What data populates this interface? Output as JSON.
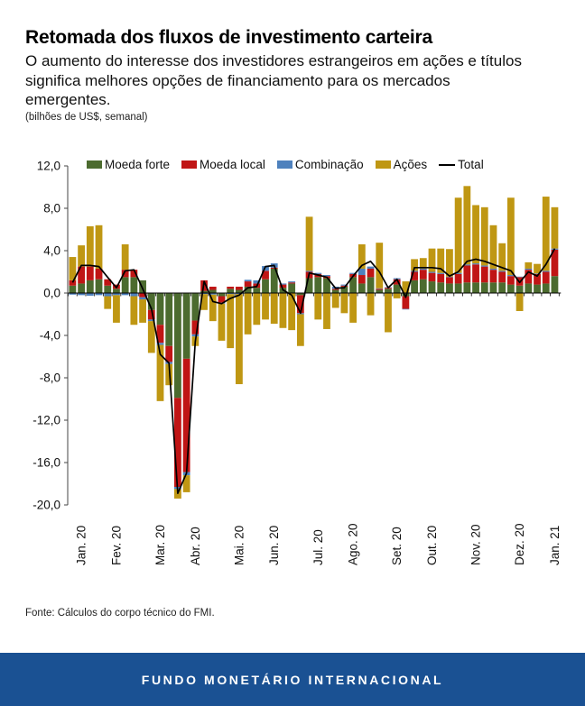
{
  "header": {
    "title": "Retomada dos fluxos de investimento carteira",
    "subtitle": "O aumento do interesse dos investidores estrangeiros em ações e títulos significa melhores opções de financiamento para os mercados emergentes.",
    "note": "(bilhões de US$, semanal)"
  },
  "legend": {
    "items": [
      {
        "label": "Moeda forte",
        "color": "#4c6b2f",
        "type": "box"
      },
      {
        "label": "Moeda local",
        "color": "#c01515",
        "type": "box"
      },
      {
        "label": "Combinação",
        "color": "#4e81bd",
        "type": "box"
      },
      {
        "label": "Ações",
        "color": "#bf9713",
        "type": "box"
      },
      {
        "label": "Total",
        "color": "#000000",
        "type": "line"
      }
    ]
  },
  "footer": {
    "source": "Fonte: Cálculos do corpo técnico do FMI."
  },
  "banner": {
    "title": "FUNDO MONETÁRIO INTERNACIONAL",
    "background": "#1a5193"
  },
  "chart_data": {
    "type": "bar",
    "subtype": "stacked-bars-with-total-line",
    "unit": "bilhões de US$, semanal",
    "n_weeks": 56,
    "ylim": [
      -20,
      12
    ],
    "grid": false,
    "legend_position": "top",
    "ytick_values": [
      12,
      8,
      4,
      0,
      -4,
      -8,
      -12,
      -16,
      -20
    ],
    "ytick_labels": [
      "12,0",
      "8,0",
      "4,0",
      "0,0",
      "-4,0",
      "-8,0",
      "-12,0",
      "-16,0",
      "-20,0"
    ],
    "x_months": [
      {
        "label": "Jan. 20",
        "week": 2
      },
      {
        "label": "Fev. 20",
        "week": 6
      },
      {
        "label": "Mar. 20",
        "week": 11
      },
      {
        "label": "Abr. 20",
        "week": 15
      },
      {
        "label": "Mai. 20",
        "week": 20
      },
      {
        "label": "Jun. 20",
        "week": 24
      },
      {
        "label": "Jul. 20",
        "week": 29
      },
      {
        "label": "Ago. 20",
        "week": 33
      },
      {
        "label": "Set. 20",
        "week": 38
      },
      {
        "label": "Out. 20",
        "week": 42
      },
      {
        "label": "Nov. 20",
        "week": 47
      },
      {
        "label": "Dez. 20",
        "week": 52
      },
      {
        "label": "Jan. 21",
        "week": 56
      }
    ],
    "series": [
      {
        "name": "Moeda forte",
        "color": "#4c6b2f",
        "values": [
          0.7,
          0.9,
          1.2,
          1.3,
          0.7,
          0.4,
          1.5,
          1.5,
          1.2,
          -1.6,
          -3.0,
          -5.0,
          -9.9,
          -6.2,
          -2.6,
          0.2,
          0.3,
          -0.3,
          0.4,
          0.3,
          0.6,
          0.5,
          1.3,
          2.3,
          0.5,
          0.9,
          -0.2,
          1.4,
          1.5,
          1.4,
          0.3,
          0.6,
          1.5,
          0.9,
          1.5,
          0.3,
          0.4,
          0.8,
          -0.3,
          1.2,
          1.3,
          1.1,
          1.0,
          0.9,
          0.9,
          1.0,
          1.0,
          1.0,
          1.0,
          1.0,
          0.8,
          0.7,
          0.9,
          0.8,
          0.9,
          1.6
        ]
      },
      {
        "name": "Moeda local",
        "color": "#c01515",
        "values": [
          0.5,
          1.6,
          1.3,
          1.0,
          0.6,
          0.4,
          0.7,
          0.7,
          -0.4,
          -0.9,
          -1.7,
          -1.5,
          -8.4,
          -10.7,
          -1.3,
          1.0,
          0.3,
          -0.6,
          0.2,
          0.3,
          0.5,
          0.4,
          0.8,
          0.1,
          0.3,
          0.1,
          -1.7,
          0.6,
          0.3,
          0.2,
          0.1,
          0.1,
          0.3,
          0.8,
          0.8,
          0.1,
          0.1,
          0.5,
          -1.2,
          0.8,
          0.9,
          0.8,
          0.8,
          0.6,
          0.9,
          1.6,
          1.7,
          1.5,
          1.2,
          1.0,
          0.8,
          0.8,
          1.3,
          1.0,
          1.1,
          2.5
        ]
      },
      {
        "name": "Combinação",
        "color": "#4e81bd",
        "values": [
          -0.15,
          -0.2,
          -0.25,
          -0.2,
          -0.3,
          -0.2,
          -0.2,
          -0.3,
          -0.2,
          -0.15,
          -0.2,
          -0.2,
          -0.2,
          -0.3,
          -0.2,
          -0.1,
          -0.15,
          -0.1,
          -0.1,
          -0.1,
          0.15,
          0.3,
          0.45,
          0.4,
          0.1,
          0.1,
          -0.1,
          0.1,
          0.1,
          0.1,
          0.2,
          0.1,
          0.1,
          0.6,
          0.2,
          0.05,
          0.05,
          0.1,
          -0.05,
          0.1,
          0.1,
          0.1,
          0.1,
          0.05,
          0.1,
          0.1,
          0.1,
          0.1,
          0.1,
          0.1,
          0.1,
          0.05,
          0.1,
          0.05,
          0.1,
          0.1
        ]
      },
      {
        "name": "Ações",
        "color": "#bf9713",
        "values": [
          2.2,
          2.0,
          3.8,
          4.1,
          -1.2,
          -2.6,
          2.4,
          -2.7,
          -2.2,
          -3.0,
          -5.3,
          -2.0,
          -0.9,
          -1.6,
          -0.9,
          -1.5,
          -2.5,
          -3.5,
          -5.1,
          -8.5,
          -3.9,
          -3.0,
          -2.5,
          -2.9,
          -3.3,
          -3.5,
          -3.0,
          5.1,
          -2.5,
          -3.4,
          -1.4,
          -1.9,
          -2.8,
          2.3,
          -2.1,
          4.3,
          -3.7,
          -0.5,
          1.1,
          1.1,
          1.0,
          2.2,
          2.3,
          2.6,
          7.1,
          7.4,
          5.5,
          5.5,
          4.1,
          2.6,
          7.3,
          -1.7,
          0.6,
          0.9,
          7.0,
          3.9
        ]
      }
    ],
    "line_series": {
      "name": "Total",
      "color": "#000000",
      "values": [
        1.0,
        2.6,
        2.6,
        2.5,
        1.5,
        0.5,
        2.1,
        2.2,
        0.4,
        -1.5,
        -5.8,
        -6.6,
        -18.9,
        -17.0,
        -4.6,
        1.1,
        -0.8,
        -1.0,
        -0.5,
        -0.2,
        0.5,
        0.6,
        2.5,
        2.6,
        0.3,
        -0.2,
        -1.9,
        1.9,
        1.7,
        1.5,
        0.45,
        0.5,
        1.6,
        2.6,
        3.0,
        2.0,
        0.5,
        1.3,
        -0.4,
        2.4,
        2.4,
        2.4,
        2.3,
        1.6,
        2.0,
        3.0,
        3.2,
        3.0,
        2.7,
        2.4,
        2.1,
        1.0,
        2.0,
        1.6,
        2.7,
        4.2
      ]
    }
  }
}
